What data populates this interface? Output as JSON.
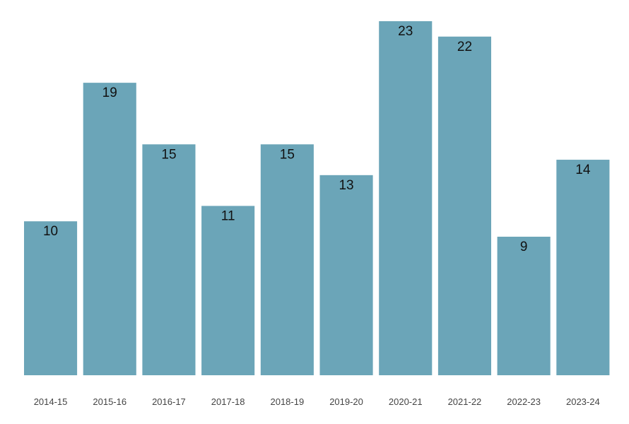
{
  "chart_data": {
    "type": "bar",
    "categories": [
      "2014-15",
      "2015-16",
      "2016-17",
      "2017-18",
      "2018-19",
      "2019-20",
      "2020-21",
      "2021-22",
      "2022-23",
      "2023-24"
    ],
    "values": [
      10,
      19,
      15,
      11,
      15,
      13,
      23,
      22,
      9,
      14
    ],
    "title": "",
    "xlabel": "",
    "ylabel": "",
    "ylim": [
      0,
      23
    ],
    "grid": false,
    "legend": "none",
    "bar_color": "#6ba5b8",
    "data_labels": true
  }
}
